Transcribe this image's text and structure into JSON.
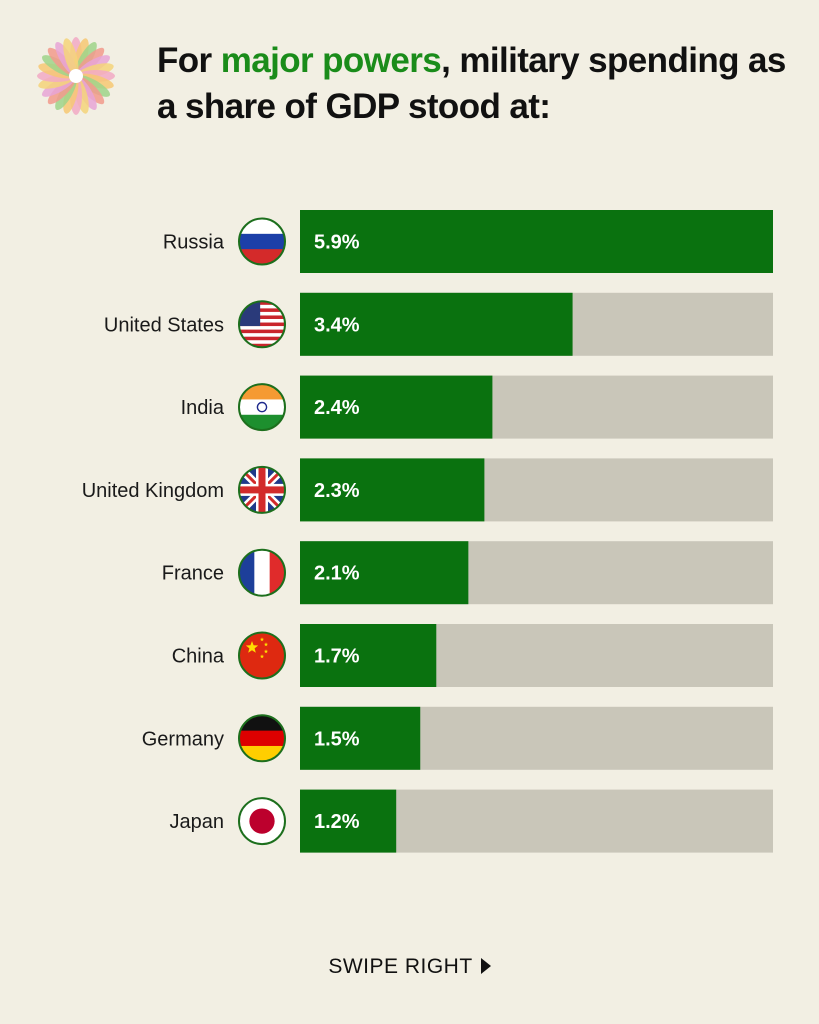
{
  "header": {
    "title_before": "For ",
    "title_highlight": "major powers",
    "title_after": ", military spending as a share of GDP stood at:",
    "highlight_color": "#1a8c1a"
  },
  "logo": {
    "icon": "flower-logo-icon"
  },
  "footer": {
    "swipe_label": "SWIPE RIGHT",
    "arrow_icon": "play-arrow-icon"
  },
  "colors": {
    "bar_fill": "#0a720f",
    "bar_track": "#c9c6b9",
    "background": "#f2efe3"
  },
  "chart_data": {
    "type": "bar",
    "orientation": "horizontal",
    "title": "For major powers, military spending as a share of GDP stood at:",
    "categories": [
      "Russia",
      "United States",
      "India",
      "United Kingdom",
      "France",
      "China",
      "Germany",
      "Japan"
    ],
    "values": [
      5.9,
      3.4,
      2.4,
      2.3,
      2.1,
      1.7,
      1.5,
      1.2
    ],
    "value_labels": [
      "5.9%",
      "3.4%",
      "2.4%",
      "2.3%",
      "2.1%",
      "1.7%",
      "1.5%",
      "1.2%"
    ],
    "flags": [
      "russia-flag-icon",
      "usa-flag-icon",
      "india-flag-icon",
      "uk-flag-icon",
      "france-flag-icon",
      "china-flag-icon",
      "germany-flag-icon",
      "japan-flag-icon"
    ],
    "unit": "% of GDP",
    "xlim": [
      0,
      5.9
    ],
    "grid": false,
    "legend": "none"
  }
}
